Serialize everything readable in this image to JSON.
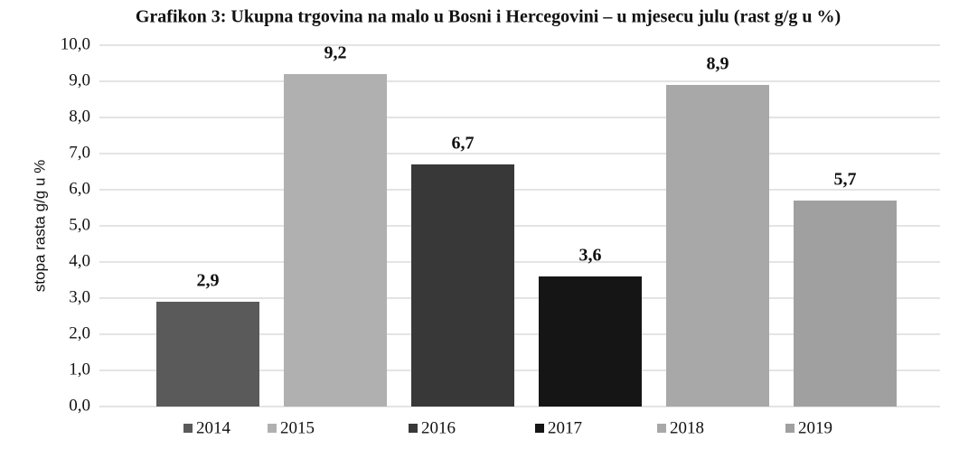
{
  "chart_data": {
    "type": "bar",
    "title": "Grafikon 3: Ukupna trgovina na malo u Bosni i Hercegovini – u mjesecu julu (rast g/g u %)",
    "y_label": "stopa rasta g/g u %",
    "categories": [
      "2014",
      "2015",
      "2016",
      "2017",
      "2018",
      "2019"
    ],
    "values": [
      2.9,
      9.2,
      6.7,
      3.6,
      8.9,
      5.7
    ],
    "value_labels": [
      "2,9",
      "9,2",
      "6,7",
      "3,6",
      "8,9",
      "5,7"
    ],
    "colors": [
      "#5a5a5a",
      "#b0b0b0",
      "#383838",
      "#151515",
      "#a8a8a8",
      "#a0a0a0"
    ],
    "ylim": [
      0,
      10
    ],
    "yticks": [
      {
        "value": 0,
        "label": "0,0"
      },
      {
        "value": 1,
        "label": "1,0"
      },
      {
        "value": 2,
        "label": "2,0"
      },
      {
        "value": 3,
        "label": "3,0"
      },
      {
        "value": 4,
        "label": "4,0"
      },
      {
        "value": 5,
        "label": "5,0"
      },
      {
        "value": 6,
        "label": "6,0"
      },
      {
        "value": 7,
        "label": "7,0"
      },
      {
        "value": 8,
        "label": "8,0"
      },
      {
        "value": 9,
        "label": "9,0"
      },
      {
        "value": 10,
        "label": "10,0"
      }
    ],
    "grid": true,
    "legend": "bottom"
  }
}
